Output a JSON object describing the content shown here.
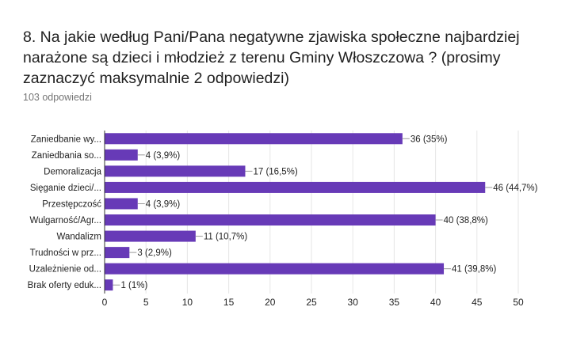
{
  "question": {
    "title": "8. Na jakie według Pani/Pana negatywne zjawiska społeczne najbardziej narażone są dzieci i młodzież z terenu Gminy Włoszczowa ? (prosimy zaznaczyć maksymalnie 2 odpowiedzi)",
    "response_count": "103 odpowiedzi"
  },
  "colors": {
    "bar": "#673ab7",
    "grid": "#e6e6e6",
    "axis": "#333333",
    "text": "#222222"
  },
  "chart_data": {
    "type": "bar",
    "orientation": "horizontal",
    "categories": [
      "Zaniedbanie wy...",
      "Zaniedbania so...",
      "Demoralizacja",
      "Sięganie dzieci/...",
      "Przestępczość",
      "Wulgarność/Agr...",
      "Wandalizm",
      "Trudności w prz...",
      "Uzależnienie od...",
      "Brak oferty eduk..."
    ],
    "values": [
      36,
      4,
      17,
      46,
      4,
      40,
      11,
      3,
      41,
      1
    ],
    "data_labels": [
      "36 (35%)",
      "4 (3,9%)",
      "17 (16,5%)",
      "46 (44,7%)",
      "4 (3,9%)",
      "40 (38,8%)",
      "11 (10,7%)",
      "3 (2,9%)",
      "41 (39,8%)",
      "1 (1%)"
    ],
    "xlim": [
      0,
      50
    ],
    "xticks": [
      0,
      5,
      10,
      15,
      20,
      25,
      30,
      35,
      40,
      45,
      50
    ],
    "grid": true,
    "legend": "none"
  }
}
